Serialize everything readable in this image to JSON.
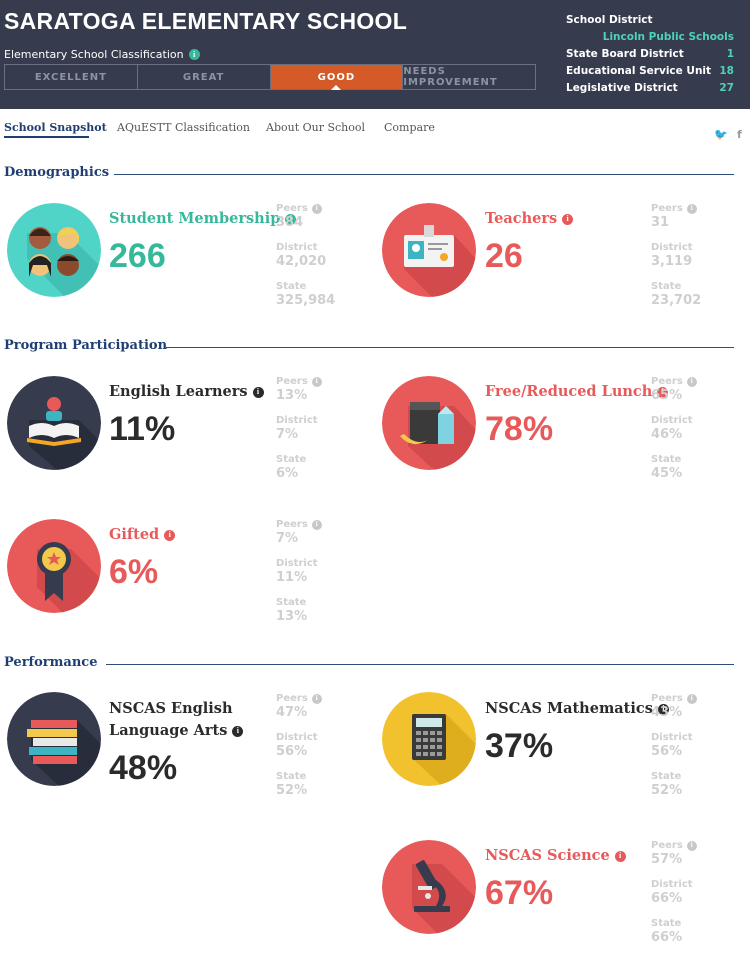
{
  "header": {
    "school_name": "SARATOGA ELEMENTARY SCHOOL",
    "classification_label": "Elementary School Classification",
    "ratings": [
      "EXCELLENT",
      "GREAT",
      "GOOD",
      "NEEDS IMPROVEMENT"
    ],
    "active_rating": "GOOD",
    "district_info": {
      "school_district_label": "School District",
      "school_district_value": "Lincoln Public Schools",
      "state_board_label": "State Board District",
      "state_board_value": "1",
      "esu_label": "Educational Service Unit",
      "esu_value": "18",
      "legislative_label": "Legislative District",
      "legislative_value": "27"
    }
  },
  "tabs": [
    "School Snapshot",
    "AQuESTT Classification",
    "About Our School",
    "Compare"
  ],
  "active_tab": "School Snapshot",
  "social": {
    "twitter": "🐦",
    "facebook": "f"
  },
  "cmp_labels": {
    "peers": "Peers",
    "district": "District",
    "state": "State"
  },
  "sections": {
    "demographics": "Demographics",
    "program": "Program Participation",
    "performance": "Performance"
  },
  "metrics": {
    "student_membership": {
      "title": "Student Membership",
      "value": "266",
      "peers": "384",
      "district": "42,020",
      "state": "325,984"
    },
    "teachers": {
      "title": "Teachers",
      "value": "26",
      "peers": "31",
      "district": "3,119",
      "state": "23,702"
    },
    "english_learners": {
      "title": "English Learners",
      "value": "11%",
      "peers": "13%",
      "district": "7%",
      "state": "6%"
    },
    "free_reduced_lunch": {
      "title": "Free/Reduced Lunch",
      "value": "78%",
      "peers": "65%",
      "district": "46%",
      "state": "45%"
    },
    "gifted": {
      "title": "Gifted",
      "value": "6%",
      "peers": "7%",
      "district": "11%",
      "state": "13%"
    },
    "nscas_ela": {
      "title_line1": "NSCAS English",
      "title_line2": "Language Arts",
      "value": "48%",
      "peers": "47%",
      "district": "56%",
      "state": "52%"
    },
    "nscas_math": {
      "title": "NSCAS Mathematics",
      "value": "37%",
      "peers": "43%",
      "district": "56%",
      "state": "52%"
    },
    "nscas_science": {
      "title": "NSCAS Science",
      "value": "67%",
      "peers": "57%",
      "district": "66%",
      "state": "66%"
    }
  },
  "colors": {
    "header_bg": "#363b4e",
    "active_rating": "#d45a28",
    "green": "#36b89b",
    "red": "#e8595a",
    "navy": "#1f3f73",
    "dark": "#2b2b2b"
  }
}
